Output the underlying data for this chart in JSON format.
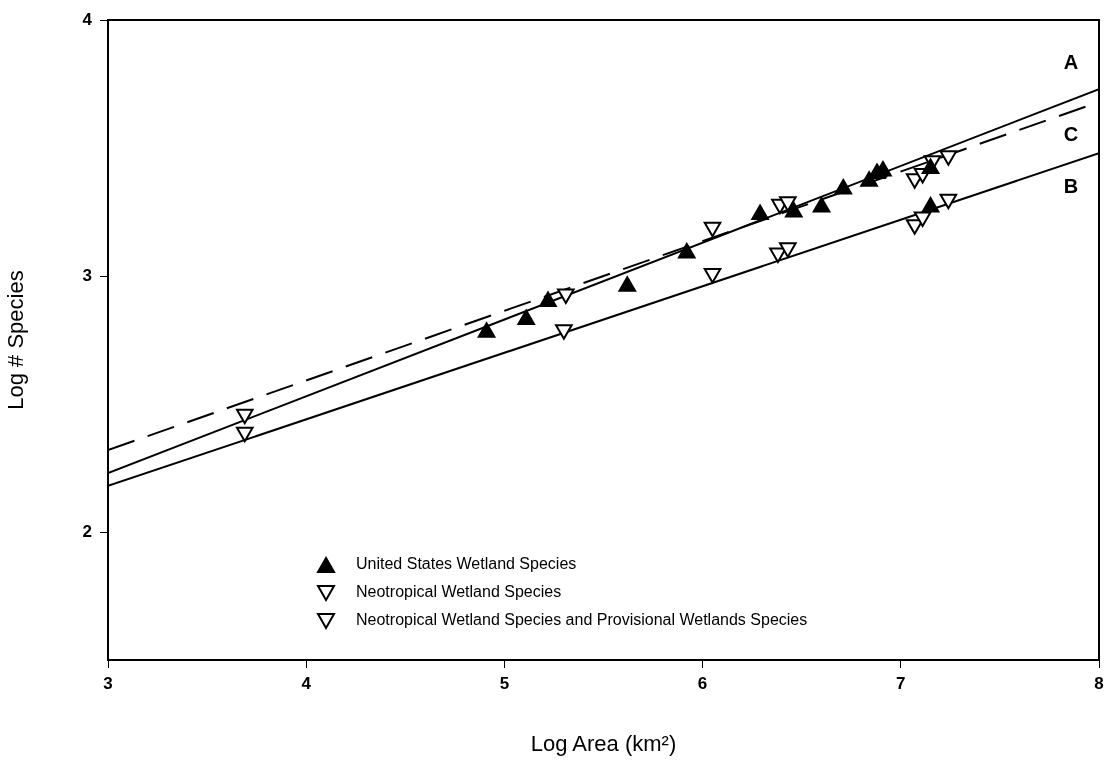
{
  "chart_data": {
    "type": "scatter",
    "xlabel": "Log Area (km²)",
    "ylabel": "Log # Species",
    "xlim": [
      3,
      8
    ],
    "xticks": [
      3,
      4,
      5,
      6,
      7,
      8
    ],
    "ylim": [
      1.5,
      4
    ],
    "yticks": [
      2,
      3,
      4
    ],
    "grid": false,
    "legend": "bottom",
    "marker": "triangle",
    "series": [
      {
        "name": "United States Wetland Species",
        "color": "#000000",
        "x": [
          4.91,
          5.11,
          5.22,
          5.62,
          5.92,
          6.29,
          6.46,
          6.6,
          6.71,
          6.84,
          6.88,
          6.91,
          7.15,
          7.15
        ],
        "values": [
          2.78,
          2.83,
          2.9,
          2.96,
          3.09,
          3.24,
          3.25,
          3.27,
          3.34,
          3.37,
          3.4,
          3.41,
          3.42,
          3.27
        ]
      },
      {
        "name": "Neotropical Wetland Species",
        "color": "#000000",
        "x": [
          3.69,
          5.3,
          6.05,
          6.38,
          6.43,
          7.07,
          7.11,
          7.24
        ],
        "values": [
          2.39,
          2.79,
          3.01,
          3.09,
          3.11,
          3.2,
          3.23,
          3.3
        ]
      },
      {
        "name": "Neotropical Wetland Species and Provisional Wetlands Species",
        "color": "#000000",
        "x": [
          3.69,
          5.31,
          6.05,
          6.39,
          6.43,
          7.07,
          7.11,
          7.16,
          7.24
        ],
        "values": [
          2.46,
          2.93,
          3.19,
          3.28,
          3.29,
          3.38,
          3.4,
          3.45,
          3.47
        ]
      },
      {
        "type": "line",
        "name": "A",
        "color": "#000000",
        "marker": "none",
        "line_style": "solid",
        "x": [
          3,
          8
        ],
        "values": [
          2.23,
          3.73
        ]
      },
      {
        "type": "line",
        "name": "C",
        "color": "#000000",
        "marker": "none",
        "line_style": "dashed",
        "x": [
          3,
          8
        ],
        "values": [
          2.32,
          3.68
        ]
      },
      {
        "type": "line",
        "name": "B",
        "color": "#000000",
        "marker": "none",
        "line_style": "solid",
        "x": [
          3,
          8
        ],
        "values": [
          2.18,
          3.48
        ]
      }
    ]
  }
}
